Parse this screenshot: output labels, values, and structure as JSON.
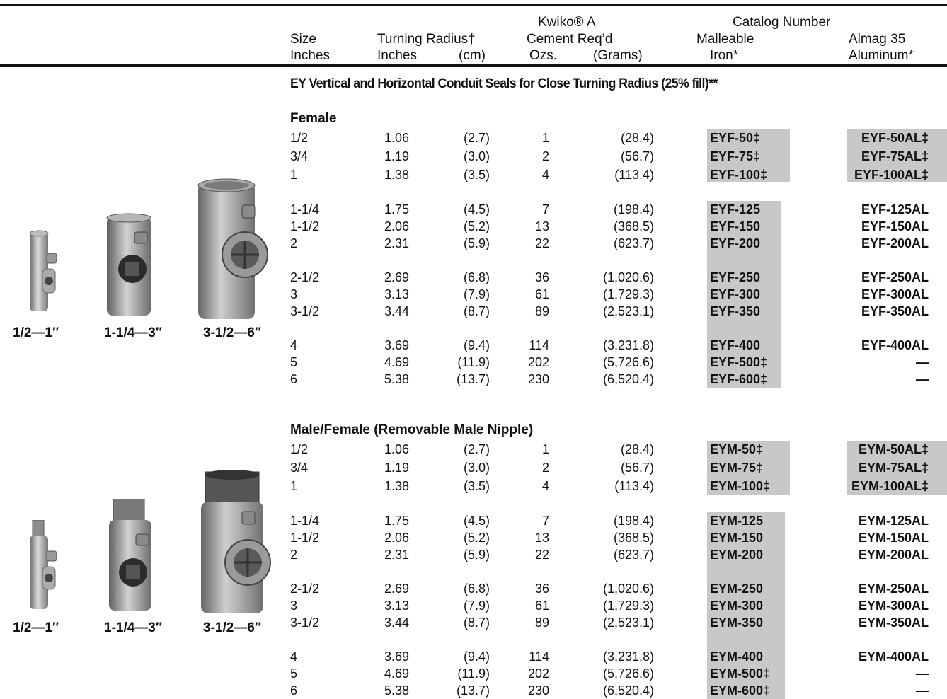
{
  "header": {
    "size": "Size",
    "size_unit": "Inches",
    "turning_radius": "Turning Radius†",
    "turning_inches": "Inches",
    "turning_cm": "(cm)",
    "kwiko": "Kwiko® A",
    "cement": "Cement Req’d",
    "ozs": "Ozs.",
    "grams": "(Grams)",
    "catalog_number": "Catalog Number",
    "malleable": "Malleable",
    "iron": "Iron*",
    "almag": "Almag 35",
    "aluminum": "Aluminum*"
  },
  "section_title": "EY Vertical and Horizontal Conduit Seals for Close Turning Radius (25% fill)**",
  "female": {
    "label": "Female",
    "image_labels": [
      "1/2—1″",
      "1-1/4—3″",
      "3-1/2—6″"
    ],
    "rows": [
      {
        "size": "1/2",
        "in": "1.06",
        "cm": "(2.7)",
        "ozs": "1",
        "g": "(28.4)",
        "mi": "EYF-50‡",
        "al": "EYF-50AL‡"
      },
      {
        "size": "3/4",
        "in": "1.19",
        "cm": "(3.0)",
        "ozs": "2",
        "g": "(56.7)",
        "mi": "EYF-75‡",
        "al": "EYF-75AL‡"
      },
      {
        "size": "1",
        "in": "1.38",
        "cm": "(3.5)",
        "ozs": "4",
        "g": "(113.4)",
        "mi": "EYF-100‡",
        "al": "EYF-100AL‡"
      },
      {
        "size": "1-1/4",
        "in": "1.75",
        "cm": "(4.5)",
        "ozs": "7",
        "g": "(198.4)",
        "mi": "EYF-125",
        "al": "EYF-125AL"
      },
      {
        "size": "1-1/2",
        "in": "2.06",
        "cm": "(5.2)",
        "ozs": "13",
        "g": "(368.5)",
        "mi": "EYF-150",
        "al": "EYF-150AL"
      },
      {
        "size": "2",
        "in": "2.31",
        "cm": "(5.9)",
        "ozs": "22",
        "g": "(623.7)",
        "mi": "EYF-200",
        "al": "EYF-200AL"
      },
      {
        "size": "2-1/2",
        "in": "2.69",
        "cm": "(6.8)",
        "ozs": "36",
        "g": "(1,020.6)",
        "mi": "EYF-250",
        "al": "EYF-250AL"
      },
      {
        "size": "3",
        "in": "3.13",
        "cm": "(7.9)",
        "ozs": "61",
        "g": "(1,729.3)",
        "mi": "EYF-300",
        "al": "EYF-300AL"
      },
      {
        "size": "3-1/2",
        "in": "3.44",
        "cm": "(8.7)",
        "ozs": "89",
        "g": "(2,523.1)",
        "mi": "EYF-350",
        "al": "EYF-350AL"
      },
      {
        "size": "4",
        "in": "3.69",
        "cm": "(9.4)",
        "ozs": "114",
        "g": "(3,231.8)",
        "mi": "EYF-400",
        "al": "EYF-400AL"
      },
      {
        "size": "5",
        "in": "4.69",
        "cm": "(11.9)",
        "ozs": "202",
        "g": "(5,726.6)",
        "mi": "EYF-500‡",
        "al": "—"
      },
      {
        "size": "6",
        "in": "5.38",
        "cm": "(13.7)",
        "ozs": "230",
        "g": "(6,520.4)",
        "mi": "EYF-600‡",
        "al": "—"
      }
    ]
  },
  "male_female": {
    "label": "Male/Female (Removable Male Nipple)",
    "image_labels": [
      "1/2—1″",
      "1-1/4—3″",
      "3-1/2—6″"
    ],
    "rows": [
      {
        "size": "1/2",
        "in": "1.06",
        "cm": "(2.7)",
        "ozs": "1",
        "g": "(28.4)",
        "mi": "EYM-50‡",
        "al": "EYM-50AL‡"
      },
      {
        "size": "3/4",
        "in": "1.19",
        "cm": "(3.0)",
        "ozs": "2",
        "g": "(56.7)",
        "mi": "EYM-75‡",
        "al": "EYM-75AL‡"
      },
      {
        "size": "1",
        "in": "1.38",
        "cm": "(3.5)",
        "ozs": "4",
        "g": "(113.4)",
        "mi": "EYM-100‡",
        "al": "EYM-100AL‡"
      },
      {
        "size": "1-1/4",
        "in": "1.75",
        "cm": "(4.5)",
        "ozs": "7",
        "g": "(198.4)",
        "mi": "EYM-125",
        "al": "EYM-125AL"
      },
      {
        "size": "1-1/2",
        "in": "2.06",
        "cm": "(5.2)",
        "ozs": "13",
        "g": "(368.5)",
        "mi": "EYM-150",
        "al": "EYM-150AL"
      },
      {
        "size": "2",
        "in": "2.31",
        "cm": "(5.9)",
        "ozs": "22",
        "g": "(623.7)",
        "mi": "EYM-200",
        "al": "EYM-200AL"
      },
      {
        "size": "2-1/2",
        "in": "2.69",
        "cm": "(6.8)",
        "ozs": "36",
        "g": "(1,020.6)",
        "mi": "EYM-250",
        "al": "EYM-250AL"
      },
      {
        "size": "3",
        "in": "3.13",
        "cm": "(7.9)",
        "ozs": "61",
        "g": "(1,729.3)",
        "mi": "EYM-300",
        "al": "EYM-300AL"
      },
      {
        "size": "3-1/2",
        "in": "3.44",
        "cm": "(8.7)",
        "ozs": "89",
        "g": "(2,523.1)",
        "mi": "EYM-350",
        "al": "EYM-350AL"
      },
      {
        "size": "4",
        "in": "3.69",
        "cm": "(9.4)",
        "ozs": "114",
        "g": "(3,231.8)",
        "mi": "EYM-400",
        "al": "EYM-400AL"
      },
      {
        "size": "5",
        "in": "4.69",
        "cm": "(11.9)",
        "ozs": "202",
        "g": "(5,726.6)",
        "mi": "EYM-500‡",
        "al": "—"
      },
      {
        "size": "6",
        "in": "5.38",
        "cm": "(13.7)",
        "ozs": "230",
        "g": "(6,520.4)",
        "mi": "EYM-600‡",
        "al": "—"
      }
    ]
  }
}
